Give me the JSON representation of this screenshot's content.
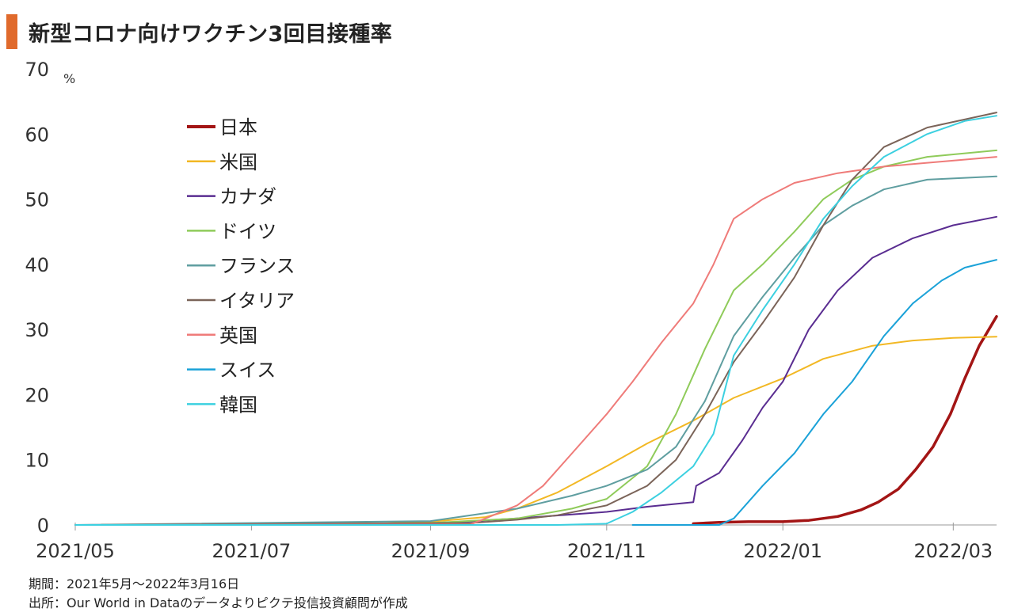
{
  "header": {
    "title": "新型コロナ向けワクチン3回目接種率"
  },
  "footer": {
    "period": "期間：2021年5月～2022年3月16日",
    "source": "出所：Our World in Dataのデータよりピクテ投信投資顧問が作成"
  },
  "chart_data": {
    "type": "line",
    "title": "新型コロナ向けワクチン3回目接種率",
    "ylabel": "%",
    "ylim": [
      0,
      70
    ],
    "yticks": [
      0,
      10,
      20,
      30,
      40,
      50,
      60,
      70
    ],
    "xlim": [
      "2021-05-01",
      "2022-03-16"
    ],
    "xticks": [
      {
        "date": "2021-05-01",
        "label": "2021/05"
      },
      {
        "date": "2021-07-01",
        "label": "2021/07"
      },
      {
        "date": "2021-09-01",
        "label": "2021/09"
      },
      {
        "date": "2021-11-01",
        "label": "2021/11"
      },
      {
        "date": "2022-01-01",
        "label": "2022/01"
      },
      {
        "date": "2022-03-01",
        "label": "2022/03"
      }
    ],
    "legend_position": "top-left",
    "grid": false,
    "series": [
      {
        "name": "日本",
        "color": "#a31515",
        "width": 3.5,
        "points": [
          [
            "2021-12-01",
            0.2
          ],
          [
            "2021-12-10",
            0.4
          ],
          [
            "2021-12-20",
            0.5
          ],
          [
            "2022-01-01",
            0.5
          ],
          [
            "2022-01-10",
            0.7
          ],
          [
            "2022-01-20",
            1.3
          ],
          [
            "2022-01-28",
            2.3
          ],
          [
            "2022-02-03",
            3.5
          ],
          [
            "2022-02-10",
            5.5
          ],
          [
            "2022-02-16",
            8.5
          ],
          [
            "2022-02-22",
            12
          ],
          [
            "2022-02-28",
            17
          ],
          [
            "2022-03-05",
            22.5
          ],
          [
            "2022-03-10",
            27.5
          ],
          [
            "2022-03-16",
            32
          ]
        ]
      },
      {
        "name": "米国",
        "color": "#f2b824",
        "width": 2,
        "points": [
          [
            "2021-05-01",
            0
          ],
          [
            "2021-08-01",
            0
          ],
          [
            "2021-09-01",
            0.5
          ],
          [
            "2021-09-20",
            1.2
          ],
          [
            "2021-10-01",
            2.5
          ],
          [
            "2021-10-15",
            5
          ],
          [
            "2021-11-01",
            9
          ],
          [
            "2021-11-15",
            12.5
          ],
          [
            "2021-12-01",
            16
          ],
          [
            "2021-12-15",
            19.5
          ],
          [
            "2022-01-01",
            22.5
          ],
          [
            "2022-01-15",
            25.5
          ],
          [
            "2022-02-01",
            27.5
          ],
          [
            "2022-02-15",
            28.3
          ],
          [
            "2022-03-01",
            28.7
          ],
          [
            "2022-03-16",
            28.9
          ]
        ]
      },
      {
        "name": "カナダ",
        "color": "#5a2d91",
        "width": 2,
        "points": [
          [
            "2021-05-01",
            0
          ],
          [
            "2021-09-01",
            0.2
          ],
          [
            "2021-10-01",
            1
          ],
          [
            "2021-11-01",
            2
          ],
          [
            "2021-11-15",
            2.8
          ],
          [
            "2021-12-01",
            3.5
          ],
          [
            "2021-12-02",
            6
          ],
          [
            "2021-12-10",
            8
          ],
          [
            "2021-12-18",
            13
          ],
          [
            "2021-12-25",
            18
          ],
          [
            "2022-01-01",
            22
          ],
          [
            "2022-01-10",
            30
          ],
          [
            "2022-01-20",
            36
          ],
          [
            "2022-02-01",
            41
          ],
          [
            "2022-02-15",
            44
          ],
          [
            "2022-03-01",
            46
          ],
          [
            "2022-03-16",
            47.3
          ]
        ]
      },
      {
        "name": "ドイツ",
        "color": "#8fcb5a",
        "width": 2,
        "points": [
          [
            "2021-05-01",
            0
          ],
          [
            "2021-09-01",
            0.3
          ],
          [
            "2021-10-01",
            1
          ],
          [
            "2021-10-20",
            2.5
          ],
          [
            "2021-11-01",
            4
          ],
          [
            "2021-11-15",
            9
          ],
          [
            "2021-11-25",
            17
          ],
          [
            "2021-12-05",
            27
          ],
          [
            "2021-12-15",
            36
          ],
          [
            "2021-12-25",
            40
          ],
          [
            "2022-01-05",
            45
          ],
          [
            "2022-01-15",
            50
          ],
          [
            "2022-01-25",
            53
          ],
          [
            "2022-02-05",
            55
          ],
          [
            "2022-02-20",
            56.5
          ],
          [
            "2022-03-16",
            57.5
          ]
        ]
      },
      {
        "name": "フランス",
        "color": "#5f9ea0",
        "width": 2,
        "points": [
          [
            "2021-05-01",
            0
          ],
          [
            "2021-09-01",
            0.6
          ],
          [
            "2021-09-15",
            1.5
          ],
          [
            "2021-10-01",
            2.5
          ],
          [
            "2021-10-20",
            4.5
          ],
          [
            "2021-11-01",
            6
          ],
          [
            "2021-11-15",
            8.5
          ],
          [
            "2021-11-25",
            12
          ],
          [
            "2021-12-05",
            19
          ],
          [
            "2021-12-15",
            29
          ],
          [
            "2021-12-25",
            35
          ],
          [
            "2022-01-05",
            41
          ],
          [
            "2022-01-15",
            46
          ],
          [
            "2022-01-25",
            49
          ],
          [
            "2022-02-05",
            51.5
          ],
          [
            "2022-02-20",
            53
          ],
          [
            "2022-03-16",
            53.5
          ]
        ]
      },
      {
        "name": "イタリア",
        "color": "#7b6459",
        "width": 2,
        "points": [
          [
            "2021-05-01",
            0
          ],
          [
            "2021-09-15",
            0.3
          ],
          [
            "2021-10-01",
            0.8
          ],
          [
            "2021-10-15",
            1.5
          ],
          [
            "2021-11-01",
            3
          ],
          [
            "2021-11-15",
            6
          ],
          [
            "2021-11-25",
            10
          ],
          [
            "2021-12-05",
            17
          ],
          [
            "2021-12-15",
            25
          ],
          [
            "2021-12-25",
            31
          ],
          [
            "2022-01-05",
            38
          ],
          [
            "2022-01-15",
            46
          ],
          [
            "2022-01-25",
            53
          ],
          [
            "2022-02-05",
            58
          ],
          [
            "2022-02-20",
            61
          ],
          [
            "2022-03-16",
            63.3
          ]
        ]
      },
      {
        "name": "英国",
        "color": "#ef7b79",
        "width": 2,
        "points": [
          [
            "2021-05-01",
            0
          ],
          [
            "2021-09-15",
            0.1
          ],
          [
            "2021-09-20",
            1
          ],
          [
            "2021-10-01",
            3
          ],
          [
            "2021-10-10",
            6
          ],
          [
            "2021-10-20",
            11
          ],
          [
            "2021-11-01",
            17
          ],
          [
            "2021-11-10",
            22
          ],
          [
            "2021-11-20",
            28
          ],
          [
            "2021-12-01",
            34
          ],
          [
            "2021-12-08",
            40
          ],
          [
            "2021-12-15",
            47
          ],
          [
            "2021-12-25",
            50
          ],
          [
            "2022-01-05",
            52.5
          ],
          [
            "2022-01-20",
            54
          ],
          [
            "2022-02-05",
            55
          ],
          [
            "2022-03-16",
            56.5
          ]
        ]
      },
      {
        "name": "スイス",
        "color": "#1ba2d8",
        "width": 2,
        "points": [
          [
            "2021-11-10",
            0
          ],
          [
            "2021-12-10",
            0
          ],
          [
            "2021-12-15",
            1
          ],
          [
            "2021-12-25",
            6
          ],
          [
            "2022-01-05",
            11
          ],
          [
            "2022-01-15",
            17
          ],
          [
            "2022-01-25",
            22
          ],
          [
            "2022-02-05",
            29
          ],
          [
            "2022-02-15",
            34
          ],
          [
            "2022-02-25",
            37.5
          ],
          [
            "2022-03-05",
            39.5
          ],
          [
            "2022-03-16",
            40.7
          ]
        ]
      },
      {
        "name": "韓国",
        "color": "#3cd0e0",
        "width": 2,
        "points": [
          [
            "2021-05-01",
            0
          ],
          [
            "2021-10-15",
            0
          ],
          [
            "2021-11-01",
            0.2
          ],
          [
            "2021-11-10",
            2
          ],
          [
            "2021-11-20",
            5
          ],
          [
            "2021-12-01",
            9
          ],
          [
            "2021-12-08",
            14
          ],
          [
            "2021-12-15",
            26
          ],
          [
            "2021-12-25",
            33
          ],
          [
            "2022-01-05",
            40
          ],
          [
            "2022-01-15",
            47
          ],
          [
            "2022-01-25",
            52
          ],
          [
            "2022-02-05",
            56.5
          ],
          [
            "2022-02-20",
            60
          ],
          [
            "2022-03-05",
            62
          ],
          [
            "2022-03-16",
            62.8
          ]
        ]
      }
    ]
  }
}
